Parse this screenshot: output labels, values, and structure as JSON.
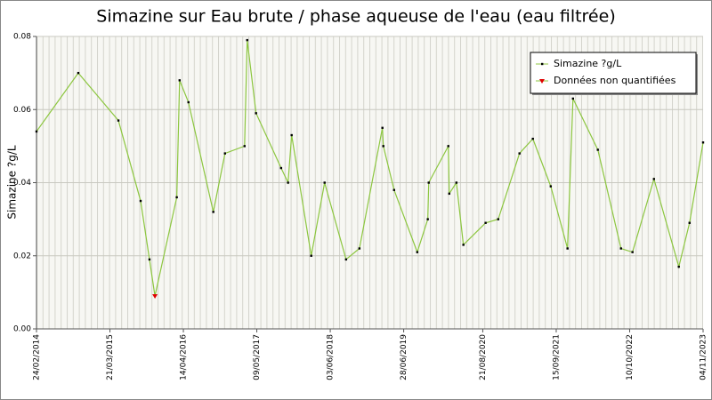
{
  "chart_data": {
    "type": "line",
    "title": "Simazine sur Eau brute / phase aqueuse de l'eau (eau filtrée)",
    "y_label": "Simazine ?g/L",
    "x": [
      "24/02/2014",
      "04/10/2014",
      "05/05/2015",
      "31/08/2015",
      "17/10/2015",
      "15/11/2015",
      "10/03/2016",
      "25/03/2016",
      "11/05/2016",
      "20/09/2016",
      "21/11/2016",
      "05/03/2017",
      "19/03/2017",
      "05/05/2017",
      "15/09/2017",
      "22/10/2017",
      "10/11/2017",
      "22/02/2018",
      "04/05/2018",
      "26/08/2018",
      "05/11/2018",
      "07/03/2019",
      "12/03/2019",
      "08/05/2019",
      "08/09/2019",
      "03/11/2019",
      "08/11/2019",
      "20/02/2020",
      "25/02/2020",
      "03/04/2020",
      "10/05/2020",
      "05/09/2020",
      "11/11/2020",
      "04/03/2021",
      "14/05/2021",
      "17/08/2021",
      "14/11/2021",
      "13/12/2021",
      "24/04/2022",
      "25/08/2022",
      "25/10/2022",
      "16/02/2023",
      "28/06/2023",
      "24/08/2023",
      "04/11/2023"
    ],
    "series": [
      {
        "name": "Simazine ?g/L",
        "color": "#000000",
        "line_color": "#8cc63f",
        "values": [
          0.054,
          0.07,
          0.057,
          0.035,
          0.019,
          null,
          0.036,
          0.068,
          0.062,
          0.032,
          0.048,
          0.05,
          0.079,
          0.059,
          0.044,
          0.04,
          0.053,
          0.02,
          0.04,
          0.019,
          0.022,
          0.055,
          0.05,
          0.038,
          0.021,
          0.03,
          0.04,
          0.05,
          0.037,
          0.04,
          0.023,
          0.029,
          0.03,
          0.048,
          0.052,
          0.039,
          0.022,
          0.063,
          0.049,
          0.022,
          0.021,
          0.041,
          0.017,
          0.029,
          0.051
        ]
      },
      {
        "name": "Données non quantifiées",
        "color": "#e00000",
        "values": [
          null,
          null,
          null,
          null,
          null,
          0.009,
          null,
          null,
          null,
          null,
          null,
          null,
          null,
          null,
          null,
          null,
          null,
          null,
          null,
          null,
          null,
          null,
          null,
          null,
          null,
          null,
          null,
          null,
          null,
          null,
          null,
          null,
          null,
          null,
          null,
          null,
          null,
          null,
          null,
          null,
          null,
          null,
          null,
          null,
          null
        ]
      }
    ],
    "xlim": [
      "24/02/2014",
      "04/11/2023"
    ],
    "xticks": [
      "24/02/2014",
      "21/03/2015",
      "14/04/2016",
      "09/05/2017",
      "03/06/2018",
      "28/06/2019",
      "21/08/2020",
      "15/09/2021",
      "10/10/2022",
      "04/11/2023"
    ],
    "ylim": [
      0,
      0.08
    ],
    "yticks": [
      {
        "value": 0,
        "label": "0.00"
      },
      {
        "value": 0.02,
        "label": "0.02"
      },
      {
        "value": 0.04,
        "label": "0.04"
      },
      {
        "value": 0.06,
        "label": "0.06"
      },
      {
        "value": 0.08,
        "label": "0.08"
      }
    ],
    "grid": true,
    "legend": "top-right"
  }
}
